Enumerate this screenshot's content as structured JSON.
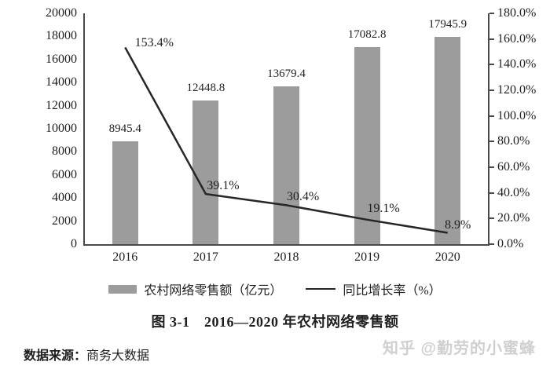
{
  "chart_data": {
    "type": "combo",
    "title": "图 3-1　2016—2020 年农村网络零售额",
    "categories": [
      "2016",
      "2017",
      "2018",
      "2019",
      "2020"
    ],
    "series": [
      {
        "name": "农村网络零售额（亿元）",
        "type": "bar",
        "axis": "left",
        "values": [
          8945.4,
          12448.8,
          13679.4,
          17082.8,
          17945.9
        ],
        "labels": [
          "8945.4",
          "12448.8",
          "13679.4",
          "17082.8",
          "17945.9"
        ]
      },
      {
        "name": "同比增长率（%）",
        "type": "line",
        "axis": "right",
        "values": [
          153.4,
          39.1,
          30.4,
          19.1,
          8.9
        ],
        "labels": [
          "153.4%",
          "39.1%",
          "30.4%",
          "19.1%",
          "8.9%"
        ]
      }
    ],
    "axes": {
      "left": {
        "min": 0,
        "max": 20000,
        "tick_labels": [
          "0",
          "2000",
          "4000",
          "6000",
          "8000",
          "10000",
          "12000",
          "14000",
          "16000",
          "18000",
          "20000"
        ]
      },
      "right": {
        "min": 0,
        "max": 180,
        "tick_labels": [
          "0.0%",
          "20.0%",
          "40.0%",
          "60.0%",
          "80.0%",
          "100.0%",
          "120.0%",
          "140.0%",
          "160.0%",
          "180.0%"
        ]
      }
    },
    "legend": {
      "position": "bottom",
      "entries": [
        "农村网络零售额（亿元）",
        "同比增长率（%）"
      ]
    },
    "grid": false
  },
  "source": {
    "prefix": "数据来源：",
    "text": "商务大数据"
  },
  "watermark": "知乎 @勤劳的小蜜蜂",
  "colors": {
    "bar": "#9c9c9c",
    "line": "#262626",
    "axis": "#4a4a4a",
    "text": "#1f1f1f",
    "watermark": "#d0d0d0",
    "background": "#ffffff"
  }
}
